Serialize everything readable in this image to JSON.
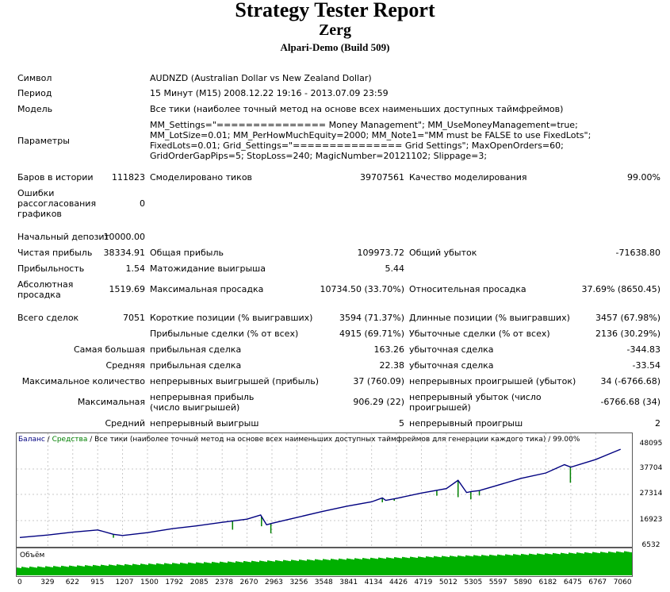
{
  "report": {
    "title": "Strategy Tester Report",
    "expert": "Zerg",
    "server": "Alpari-Demo (Build 509)"
  },
  "info": {
    "symbol_label": "Символ",
    "symbol_value": "AUDNZD (Australian Dollar vs New Zealand Dollar)",
    "period_label": "Период",
    "period_value": "15 Минут (M15) 2008.12.22 19:16 - 2013.07.09 23:59",
    "model_label": "Модель",
    "model_value": "Все тики (наиболее точный метод на основе всех наименьших доступных таймфреймов)",
    "params_label": "Параметры",
    "params_value": "MM_Settings=\"=============== Money Management\"; MM_UseMoneyManagement=true; MM_LotSize=0.01; MM_PerHowMuchEquity=2000; MM_Note1=\"MM must be FALSE to use FixedLots\"; FixedLots=0.01; Grid_Settings=\"=============== Grid Settings\"; MaxOpenOrders=60; GridOrderGapPips=5; StopLoss=240; MagicNumber=20121102; Slippage=3;"
  },
  "stats": {
    "bars_label": "Баров в истории",
    "bars_value": "111823",
    "ticks_label": "Смоделировано тиков",
    "ticks_value": "39707561",
    "quality_label": "Качество моделирования",
    "quality_value": "99.00%",
    "errors_label": "Ошибки рассогласования графиков",
    "errors_value": "0",
    "deposit_label": "Начальный депозит",
    "deposit_value": "10000.00",
    "net_label": "Чистая прибыль",
    "net_value": "38334.91",
    "gross_profit_label": "Общая прибыль",
    "gross_profit_value": "109973.72",
    "gross_loss_label": "Общий убыток",
    "gross_loss_value": "-71638.80",
    "pf_label": "Прибыльность",
    "pf_value": "1.54",
    "payoff_label": "Матожидание выигрыша",
    "payoff_value": "5.44",
    "abs_dd_label": "Абсолютная просадка",
    "abs_dd_value": "1519.69",
    "max_dd_label": "Максимальная просадка",
    "max_dd_value": "10734.50 (33.70%)",
    "rel_dd_label": "Относительная просадка",
    "rel_dd_value": "37.69% (8650.45)",
    "trades_label": "Всего сделок",
    "trades_value": "7051",
    "short_label": "Короткие позиции (% выигравших)",
    "short_value": "3594 (71.37%)",
    "long_label": "Длинные позиции (% выигравших)",
    "long_value": "3457 (67.98%)",
    "profit_trades_label": "Прибыльные сделки (% от всех)",
    "profit_trades_value": "4915 (69.71%)",
    "loss_trades_label": "Убыточные сделки (% от всех)",
    "loss_trades_value": "2136 (30.29%)",
    "largest_label": "Самая большая",
    "largest_profit_label": "прибыльная сделка",
    "largest_profit_value": "163.26",
    "largest_loss_label": "убыточная сделка",
    "largest_loss_value": "-344.83",
    "average_label": "Средняя",
    "average_profit_label": "прибыльная сделка",
    "average_profit_value": "22.38",
    "average_loss_label": "убыточная сделка",
    "average_loss_value": "-33.54",
    "max_count_label": "Максимальное количество",
    "consec_wins_label": "непрерывных выигрышей (прибыль)",
    "consec_wins_value": "37 (760.09)",
    "consec_losses_label": "непрерывных проигрышей (убыток)",
    "consec_losses_value": "34 (-6766.68)",
    "maximal_label": "Максимальная",
    "consec_profit_label": "непрерывная прибыль (число выигрышей)",
    "consec_profit_value": "906.29 (22)",
    "consec_loss_label": "непрерывный убыток (число проигрышей)",
    "consec_loss_value": "-6766.68 (34)",
    "avg_label": "Средний",
    "avg_wins_label": "непрерывный выигрыш",
    "avg_wins_value": "5",
    "avg_losses_label": "непрерывный проигрыш",
    "avg_losses_value": "2"
  },
  "chart": {
    "legend_balance": "Баланс",
    "legend_sep1": " / ",
    "legend_equity": "Средства",
    "legend_rest": " / Все тики (наиболее точный метод на основе всех наименьших доступных таймфреймов для генерации каждого тика) / 99.00%",
    "volume_label": "Объём",
    "balance_color": "#000080",
    "equity_color": "#008000",
    "volume_color": "#00b000"
  },
  "chart_data": {
    "type": "line",
    "yticks": [
      "48095",
      "37704",
      "27314",
      "16923",
      "6532"
    ],
    "xticks": [
      "0",
      "329",
      "622",
      "915",
      "1207",
      "1500",
      "1792",
      "2085",
      "2378",
      "2670",
      "2963",
      "3256",
      "3548",
      "3841",
      "4134",
      "4426",
      "4719",
      "5012",
      "5305",
      "5597",
      "5890",
      "6182",
      "6475",
      "6767",
      "7060"
    ],
    "ylim": [
      6532,
      48095
    ],
    "xlim": [
      0,
      7100
    ],
    "series": [
      {
        "name": "Баланс",
        "x": [
          0,
          329,
          622,
          915,
          1100,
          1207,
          1500,
          1792,
          2085,
          2378,
          2670,
          2830,
          2900,
          2963,
          3256,
          3548,
          3841,
          4134,
          4260,
          4300,
          4426,
          4719,
          5012,
          5150,
          5250,
          5305,
          5400,
          5597,
          5890,
          6182,
          6400,
          6475,
          6767,
          7060
        ],
        "y": [
          10000,
          11000,
          12200,
          13100,
          11300,
          10800,
          12000,
          13600,
          14800,
          16200,
          17500,
          19200,
          15200,
          15800,
          18200,
          20600,
          22800,
          24600,
          26200,
          25200,
          26000,
          28200,
          30000,
          33400,
          28400,
          28800,
          29200,
          31200,
          34200,
          36400,
          39800,
          38800,
          41900,
          46100
        ]
      },
      {
        "name": "Средства",
        "x": [
          1100,
          2500,
          2840,
          2950,
          4260,
          4400,
          4900,
          5150,
          5300,
          5400,
          6470
        ],
        "y": [
          9900,
          13200,
          14600,
          11700,
          24400,
          25000,
          27100,
          26500,
          25600,
          27200,
          32400
        ]
      }
    ]
  }
}
